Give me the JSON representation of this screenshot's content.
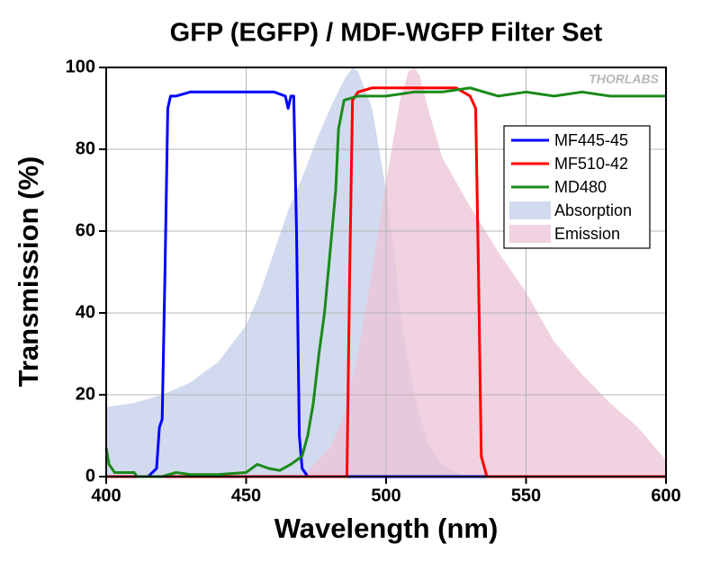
{
  "chart_data": {
    "type": "line",
    "title": "GFP (EGFP) / MDF-WGFP Filter Set",
    "watermark": "THORLABS",
    "xlabel": "Wavelength (nm)",
    "ylabel": "Transmission (%)",
    "xlim": [
      400,
      600
    ],
    "xticks": [
      400,
      450,
      500,
      550,
      600
    ],
    "ylim": [
      0,
      100
    ],
    "yticks": [
      0,
      20,
      40,
      60,
      80,
      100
    ],
    "grid": true,
    "legend": "upper right",
    "series": [
      {
        "name": "Absorption",
        "color": "#c3cde9",
        "kind": "area",
        "x": [
          400,
          410,
          420,
          430,
          440,
          450,
          455,
          460,
          465,
          470,
          475,
          480,
          485,
          488,
          490,
          495,
          500,
          503,
          505,
          510,
          515,
          520,
          525,
          530,
          540,
          600
        ],
        "values": [
          17,
          18,
          20,
          23,
          28,
          37,
          45,
          55,
          65,
          73,
          82,
          90,
          97,
          100,
          99,
          90,
          70,
          55,
          40,
          20,
          8,
          3,
          1,
          0,
          0,
          0
        ]
      },
      {
        "name": "Emission",
        "color": "#ecc3d5",
        "kind": "area",
        "x": [
          400,
          470,
          480,
          485,
          490,
          495,
          500,
          505,
          508,
          510,
          512,
          515,
          520,
          525,
          530,
          540,
          550,
          560,
          570,
          580,
          590,
          600
        ],
        "values": [
          0,
          0,
          7,
          15,
          30,
          50,
          72,
          92,
          99,
          100,
          98,
          90,
          78,
          72,
          66,
          55,
          45,
          33,
          25,
          18,
          12,
          4
        ]
      },
      {
        "name": "MF445-45",
        "color": "#0000ff",
        "kind": "line",
        "x": [
          400,
          415,
          418,
          419,
          420,
          421,
          422,
          423,
          425,
          430,
          440,
          450,
          460,
          464,
          465,
          466,
          467,
          468,
          469,
          470,
          472,
          600
        ],
        "values": [
          0,
          0,
          2,
          12,
          14,
          50,
          90,
          93,
          93,
          94,
          94,
          94,
          94,
          93,
          90,
          93,
          93,
          60,
          10,
          2,
          0,
          0
        ]
      },
      {
        "name": "MF510-42",
        "color": "#ff0000",
        "kind": "line",
        "x": [
          400,
          486,
          487,
          488,
          490,
          495,
          500,
          510,
          520,
          525,
          530,
          532,
          533,
          534,
          536,
          600
        ],
        "values": [
          0,
          0,
          50,
          92,
          94,
          95,
          95,
          95,
          95,
          95,
          93,
          90,
          50,
          5,
          0,
          0
        ]
      },
      {
        "name": "MD480",
        "color": "#1a8a1a",
        "kind": "line",
        "x": [
          400,
          401,
          403,
          410,
          411,
          420,
          425,
          430,
          440,
          450,
          454,
          458,
          462,
          466,
          468,
          470,
          472,
          474,
          476,
          478,
          480,
          482,
          483,
          485,
          490,
          500,
          510,
          520,
          530,
          540,
          550,
          560,
          570,
          580,
          590,
          600
        ],
        "values": [
          7,
          3,
          1,
          1,
          0,
          0,
          1,
          0.5,
          0.5,
          1,
          3,
          2,
          1.5,
          3,
          4,
          5,
          10,
          18,
          30,
          40,
          55,
          70,
          85,
          92,
          93,
          93,
          94,
          94,
          95,
          93,
          94,
          93,
          94,
          93,
          93,
          93
        ]
      }
    ]
  }
}
